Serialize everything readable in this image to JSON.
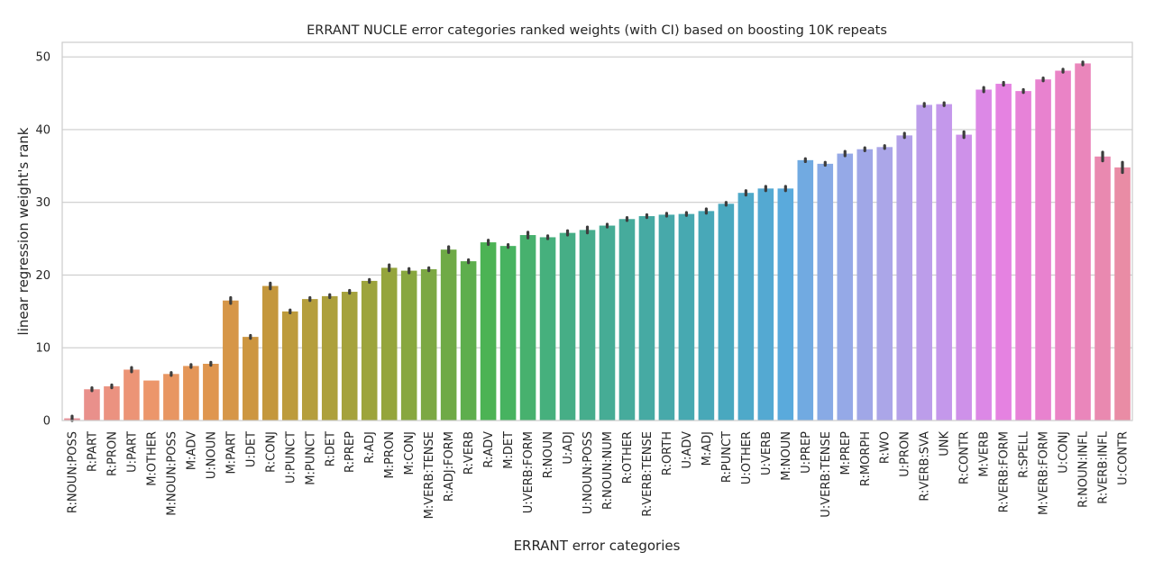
{
  "chart_data": {
    "type": "bar",
    "title": "ERRANT NUCLE error categories ranked weights (with CI) based on boosting 10K repeats",
    "xlabel": "ERRANT error categories",
    "ylabel": "linear regression weight's rank",
    "ylim": [
      0,
      52
    ],
    "yticks": [
      0,
      10,
      20,
      30,
      40,
      50
    ],
    "grid": "horizontal",
    "error_bars": true,
    "categories": [
      "R:NOUN:POSS",
      "R:PART",
      "R:PRON",
      "U:PART",
      "M:OTHER",
      "M:NOUN:POSS",
      "M:ADV",
      "U:NOUN",
      "M:PART",
      "U:DET",
      "R:CONJ",
      "U:PUNCT",
      "M:PUNCT",
      "R:DET",
      "R:PREP",
      "R:ADJ",
      "M:PRON",
      "M:CONJ",
      "M:VERB:TENSE",
      "R:ADJ:FORM",
      "R:VERB",
      "R:ADV",
      "M:DET",
      "U:VERB:FORM",
      "R:NOUN",
      "U:ADJ",
      "U:NOUN:POSS",
      "R:NOUN:NUM",
      "R:OTHER",
      "R:VERB:TENSE",
      "R:ORTH",
      "U:ADV",
      "M:ADJ",
      "R:PUNCT",
      "U:OTHER",
      "U:VERB",
      "M:NOUN",
      "U:PREP",
      "U:VERB:TENSE",
      "M:PREP",
      "R:MORPH",
      "R:WO",
      "U:PRON",
      "R:VERB:SVA",
      "UNK",
      "R:CONTR",
      "M:VERB",
      "R:VERB:FORM",
      "R:SPELL",
      "M:VERB:FORM",
      "U:CONJ",
      "R:NOUN:INFL",
      "R:VERB:INFL",
      "U:CONTR"
    ],
    "values": [
      0.3,
      4.3,
      4.7,
      7.0,
      5.5,
      6.4,
      7.5,
      7.8,
      16.5,
      11.5,
      18.5,
      15.0,
      16.7,
      17.1,
      17.7,
      19.2,
      21.0,
      20.6,
      20.8,
      23.5,
      21.9,
      24.5,
      24.0,
      25.5,
      25.2,
      25.8,
      26.2,
      26.8,
      27.7,
      28.1,
      28.3,
      28.4,
      28.8,
      29.8,
      31.3,
      31.9,
      31.9,
      35.8,
      35.3,
      36.7,
      37.3,
      37.6,
      39.2,
      43.4,
      43.5,
      39.3,
      45.5,
      46.3,
      45.3,
      46.9,
      48.1,
      49.1,
      36.3,
      34.8
    ],
    "ci": [
      0.3,
      0.2,
      0.2,
      0.3,
      0.0,
      0.2,
      0.2,
      0.2,
      0.4,
      0.2,
      0.4,
      0.2,
      0.2,
      0.2,
      0.2,
      0.2,
      0.4,
      0.3,
      0.2,
      0.4,
      0.2,
      0.3,
      0.2,
      0.4,
      0.2,
      0.3,
      0.4,
      0.2,
      0.2,
      0.2,
      0.2,
      0.2,
      0.3,
      0.2,
      0.3,
      0.3,
      0.3,
      0.2,
      0.2,
      0.3,
      0.2,
      0.2,
      0.3,
      0.2,
      0.2,
      0.4,
      0.3,
      0.2,
      0.2,
      0.2,
      0.2,
      0.2,
      0.6,
      0.7
    ]
  }
}
